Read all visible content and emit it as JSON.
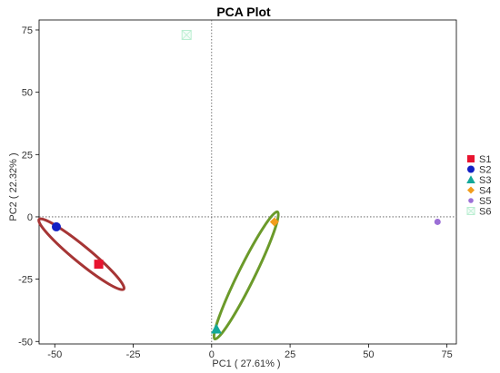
{
  "chart_data": {
    "type": "scatter",
    "title": "PCA Plot",
    "xlabel": "PC1 ( 27.61% )",
    "ylabel": "PC2 ( 22.32% )",
    "xlim": [
      -55,
      78
    ],
    "ylim": [
      -51,
      79
    ],
    "xticks": [
      -50,
      -25,
      0,
      25,
      50,
      75
    ],
    "yticks": [
      -50,
      -25,
      0,
      25,
      50,
      75
    ],
    "xtick_labels": [
      "-50",
      "-25",
      "0",
      "25",
      "50",
      "75"
    ],
    "ytick_labels": [
      "-50",
      "-25",
      "0",
      "25",
      "50",
      "75"
    ],
    "reference_lines": {
      "x": 0,
      "y": 0,
      "style": "dotted"
    },
    "grid": false,
    "legend_position": "right",
    "series": [
      {
        "name": "S1",
        "x": -36,
        "y": -19,
        "marker": "square",
        "color": "#e8132f"
      },
      {
        "name": "S2",
        "x": -49.5,
        "y": -4,
        "marker": "circle",
        "color": "#1320c4"
      },
      {
        "name": "S3",
        "x": 1.5,
        "y": -45,
        "marker": "triangle",
        "color": "#13a89a"
      },
      {
        "name": "S4",
        "x": 20,
        "y": -2,
        "marker": "diamond",
        "color": "#f29d1c"
      },
      {
        "name": "S5",
        "x": 72,
        "y": -2,
        "marker": "circle-small",
        "color": "#9b6fd6"
      },
      {
        "name": "S6",
        "x": -8,
        "y": 73,
        "marker": "square-outline",
        "color": "#b9eed1"
      }
    ],
    "ellipses": [
      {
        "color": "#a63535",
        "points": [
          [
            -55,
            -1
          ],
          [
            -28,
            -29
          ]
        ]
      },
      {
        "color": "#6b9a2a",
        "points": [
          [
            21,
            2
          ],
          [
            1,
            -49
          ]
        ]
      }
    ]
  }
}
